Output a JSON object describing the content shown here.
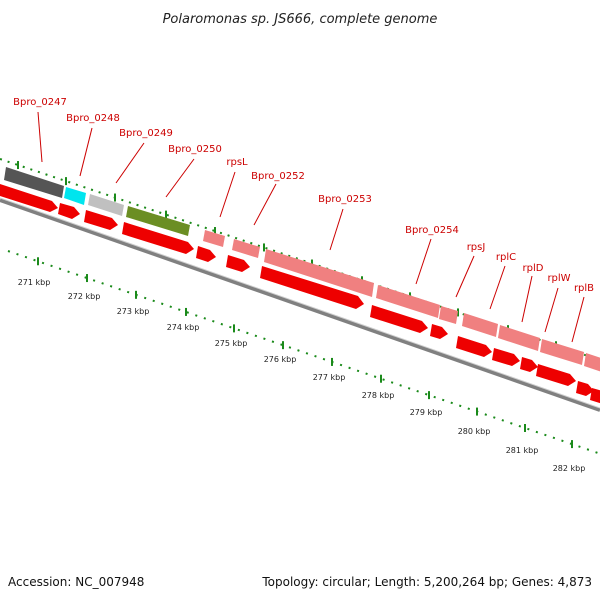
{
  "title": "Polaromonas sp. JS666, complete genome",
  "accession": "Accession: NC_007948",
  "summary": "Topology: circular; Length: 5,200,264 bp; Genes: 4,873",
  "colors": {
    "forward_strand": "#f08080",
    "reverse_strand": "#ee0000",
    "backbone": "#808080",
    "tick": "#1a8a1a",
    "label": "#cc0000"
  },
  "gene_labels": [
    "Bpro_0247",
    "Bpro_0248",
    "Bpro_0249",
    "Bpro_0250",
    "rpsL",
    "Bpro_0252",
    "Bpro_0253",
    "Bpro_0254",
    "rpsJ",
    "rplC",
    "rplD",
    "rplW",
    "rplB"
  ],
  "kbp_labels": [
    "271 kbp",
    "272 kbp",
    "273 kbp",
    "274 kbp",
    "275 kbp",
    "276 kbp",
    "277 kbp",
    "278 kbp",
    "279 kbp",
    "280 kbp",
    "281 kbp",
    "282 kbp"
  ]
}
